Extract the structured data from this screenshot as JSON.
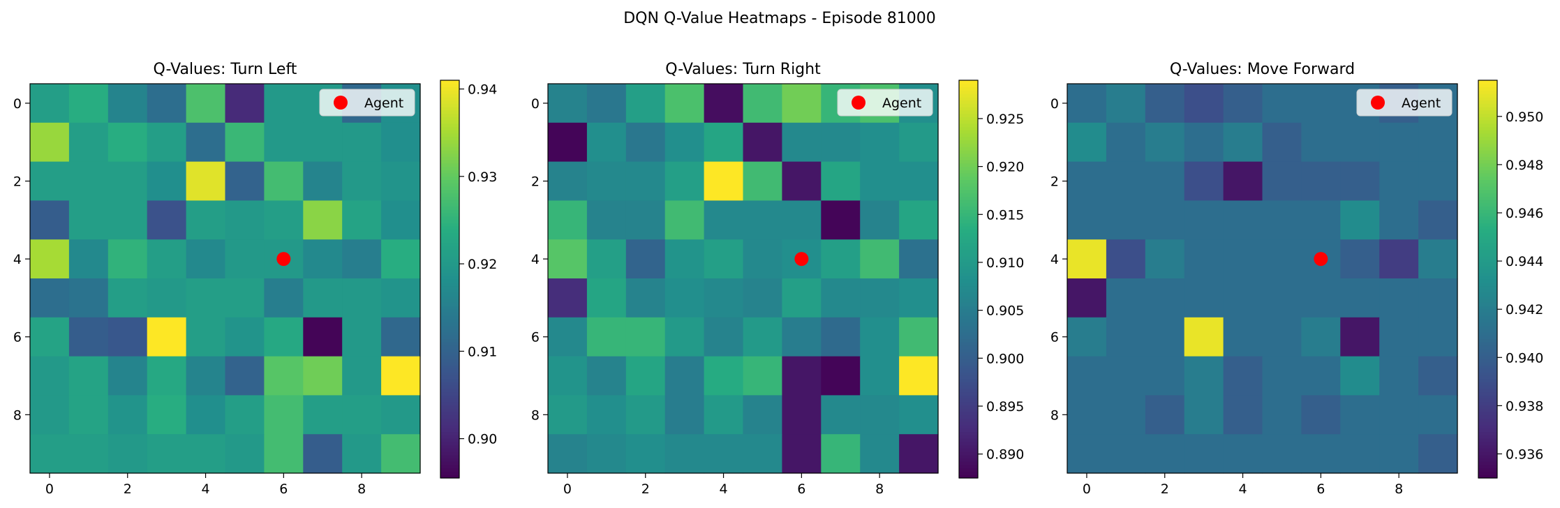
{
  "suptitle": "DQN Q-Value Heatmaps - Episode 81000",
  "chart_data": [
    {
      "type": "heatmap",
      "title": "Q-Values: Turn Left",
      "colormap": "viridis",
      "x_ticks": [
        0,
        2,
        4,
        6,
        8
      ],
      "y_ticks": [
        0,
        2,
        4,
        6,
        8
      ],
      "colorbar_range": [
        0.8955,
        0.941
      ],
      "colorbar_ticks": [
        0.9,
        0.91,
        0.92,
        0.93,
        0.94
      ],
      "colorbar_tick_labels": [
        "0.90",
        "0.91",
        "0.92",
        "0.93",
        "0.94"
      ],
      "agent": {
        "x": 6,
        "y": 4,
        "color": "#ff0000",
        "legend_label": "Agent"
      },
      "values": [
        [
          0.921,
          0.924,
          0.916,
          0.912,
          0.928,
          0.901,
          0.92,
          0.92,
          0.911,
          0.918
        ],
        [
          0.934,
          0.921,
          0.924,
          0.921,
          0.912,
          0.926,
          0.92,
          0.92,
          0.92,
          0.918
        ],
        [
          0.921,
          0.921,
          0.921,
          0.918,
          0.939,
          0.91,
          0.927,
          0.916,
          0.92,
          0.919
        ],
        [
          0.909,
          0.921,
          0.921,
          0.907,
          0.921,
          0.92,
          0.921,
          0.933,
          0.922,
          0.918
        ],
        [
          0.935,
          0.917,
          0.925,
          0.921,
          0.917,
          0.92,
          0.92,
          0.917,
          0.915,
          0.924
        ],
        [
          0.912,
          0.913,
          0.921,
          0.92,
          0.921,
          0.921,
          0.915,
          0.92,
          0.92,
          0.919
        ],
        [
          0.922,
          0.909,
          0.908,
          0.941,
          0.921,
          0.919,
          0.923,
          0.896,
          0.92,
          0.911
        ],
        [
          0.92,
          0.922,
          0.916,
          0.923,
          0.916,
          0.91,
          0.929,
          0.931,
          0.92,
          0.941
        ],
        [
          0.92,
          0.922,
          0.919,
          0.924,
          0.918,
          0.921,
          0.927,
          0.921,
          0.921,
          0.92
        ],
        [
          0.921,
          0.921,
          0.92,
          0.921,
          0.921,
          0.92,
          0.927,
          0.909,
          0.92,
          0.927
        ]
      ]
    },
    {
      "type": "heatmap",
      "title": "Q-Values: Turn Right",
      "colormap": "viridis",
      "x_ticks": [
        0,
        2,
        4,
        6,
        8
      ],
      "y_ticks": [
        0,
        2,
        4,
        6,
        8
      ],
      "colorbar_range": [
        0.8875,
        0.929
      ],
      "colorbar_ticks": [
        0.89,
        0.895,
        0.9,
        0.905,
        0.91,
        0.915,
        0.92,
        0.925
      ],
      "colorbar_tick_labels": [
        "0.890",
        "0.895",
        "0.900",
        "0.905",
        "0.910",
        "0.915",
        "0.920",
        "0.925"
      ],
      "agent": {
        "x": 6,
        "y": 4,
        "color": "#ff0000",
        "legend_label": "Agent"
      },
      "values": [
        [
          0.906,
          0.904,
          0.911,
          0.917,
          0.889,
          0.916,
          0.92,
          0.915,
          0.917,
          0.908
        ],
        [
          0.888,
          0.908,
          0.904,
          0.908,
          0.912,
          0.89,
          0.907,
          0.907,
          0.908,
          0.91
        ],
        [
          0.906,
          0.907,
          0.907,
          0.911,
          0.929,
          0.916,
          0.89,
          0.912,
          0.908,
          0.908
        ],
        [
          0.915,
          0.906,
          0.906,
          0.916,
          0.907,
          0.907,
          0.907,
          0.888,
          0.906,
          0.912
        ],
        [
          0.918,
          0.911,
          0.901,
          0.909,
          0.911,
          0.907,
          0.908,
          0.911,
          0.916,
          0.903
        ],
        [
          0.893,
          0.912,
          0.906,
          0.908,
          0.907,
          0.906,
          0.911,
          0.907,
          0.907,
          0.908
        ],
        [
          0.907,
          0.915,
          0.915,
          0.91,
          0.906,
          0.91,
          0.905,
          0.902,
          0.908,
          0.916
        ],
        [
          0.909,
          0.906,
          0.912,
          0.905,
          0.913,
          0.915,
          0.89,
          0.888,
          0.908,
          0.929
        ],
        [
          0.91,
          0.908,
          0.91,
          0.905,
          0.91,
          0.906,
          0.89,
          0.907,
          0.907,
          0.908
        ],
        [
          0.906,
          0.907,
          0.908,
          0.907,
          0.907,
          0.907,
          0.89,
          0.915,
          0.907,
          0.89
        ]
      ]
    },
    {
      "type": "heatmap",
      "title": "Q-Values: Move Forward",
      "colormap": "viridis",
      "x_ticks": [
        0,
        2,
        4,
        6,
        8
      ],
      "y_ticks": [
        0,
        2,
        4,
        6,
        8
      ],
      "colorbar_range": [
        0.935,
        0.9515
      ],
      "colorbar_ticks": [
        0.936,
        0.938,
        0.94,
        0.942,
        0.944,
        0.946,
        0.948,
        0.95
      ],
      "colorbar_tick_labels": [
        "0.936",
        "0.938",
        "0.940",
        "0.942",
        "0.944",
        "0.946",
        "0.948",
        "0.950"
      ],
      "agent": {
        "x": 6,
        "y": 4,
        "color": "#ff0000",
        "legend_label": "Agent"
      },
      "values": [
        [
          0.941,
          0.942,
          0.94,
          0.939,
          0.94,
          0.941,
          0.941,
          0.941,
          0.94,
          0.941
        ],
        [
          0.943,
          0.941,
          0.942,
          0.941,
          0.942,
          0.94,
          0.941,
          0.941,
          0.941,
          0.941
        ],
        [
          0.941,
          0.941,
          0.941,
          0.939,
          0.936,
          0.94,
          0.94,
          0.94,
          0.941,
          0.941
        ],
        [
          0.941,
          0.941,
          0.941,
          0.941,
          0.941,
          0.941,
          0.941,
          0.943,
          0.941,
          0.94
        ],
        [
          0.951,
          0.939,
          0.942,
          0.941,
          0.941,
          0.941,
          0.941,
          0.94,
          0.938,
          0.942
        ],
        [
          0.936,
          0.941,
          0.941,
          0.941,
          0.941,
          0.941,
          0.941,
          0.941,
          0.941,
          0.941
        ],
        [
          0.942,
          0.941,
          0.941,
          0.951,
          0.941,
          0.941,
          0.942,
          0.936,
          0.941,
          0.941
        ],
        [
          0.941,
          0.941,
          0.941,
          0.942,
          0.94,
          0.941,
          0.941,
          0.943,
          0.941,
          0.94
        ],
        [
          0.941,
          0.941,
          0.94,
          0.942,
          0.94,
          0.941,
          0.94,
          0.941,
          0.941,
          0.941
        ],
        [
          0.941,
          0.941,
          0.941,
          0.941,
          0.941,
          0.941,
          0.941,
          0.941,
          0.941,
          0.94
        ]
      ]
    }
  ]
}
